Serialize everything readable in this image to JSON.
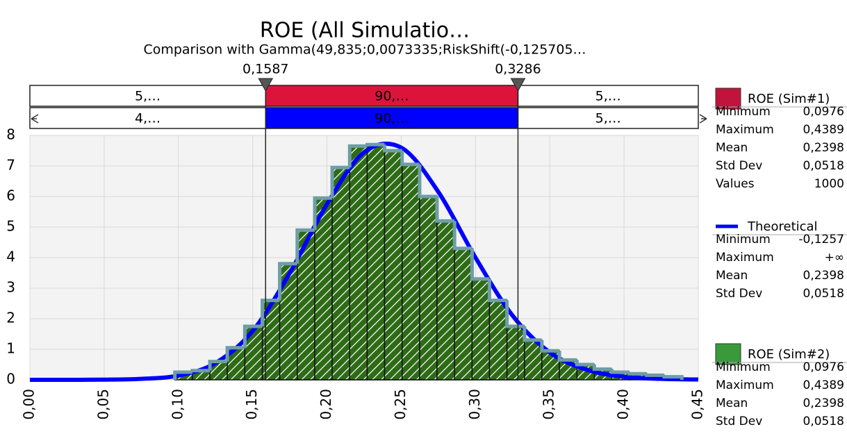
{
  "chart_data": {
    "type": "histogram",
    "title": "ROE (All Simulatio…",
    "subtitle": "Comparison with Gamma(49,835;0,0073335;RiskShift(-0,125705…",
    "xlim": [
      0,
      0.45
    ],
    "ylim": [
      0,
      8
    ],
    "xticks": [
      {
        "value": 0,
        "label": "0,00"
      },
      {
        "value": 0.05,
        "label": "0,05"
      },
      {
        "value": 0.1,
        "label": "0,10"
      },
      {
        "value": 0.15,
        "label": "0,15"
      },
      {
        "value": 0.2,
        "label": "0,20"
      },
      {
        "value": 0.25,
        "label": "0,25"
      },
      {
        "value": 0.3,
        "label": "0,30"
      },
      {
        "value": 0.35,
        "label": "0,35"
      },
      {
        "value": 0.4,
        "label": "0,40"
      },
      {
        "value": 0.45,
        "label": "0,45"
      }
    ],
    "yticks": [
      0,
      1,
      2,
      3,
      4,
      5,
      6,
      7,
      8
    ],
    "grid": true,
    "bins": [
      0.0976,
      0.1094,
      0.1212,
      0.1329,
      0.1447,
      0.1565,
      0.1682,
      0.18,
      0.1918,
      0.2035,
      0.2153,
      0.2271,
      0.2388,
      0.2506,
      0.2624,
      0.2741,
      0.2859,
      0.2977,
      0.3094,
      0.3212,
      0.333,
      0.3447,
      0.3565,
      0.3683,
      0.38,
      0.3918,
      0.4036,
      0.4153,
      0.4271,
      0.4389
    ],
    "values": [
      0.25,
      0.3,
      0.6,
      1.05,
      1.75,
      2.6,
      3.8,
      4.9,
      5.95,
      6.95,
      7.65,
      7.7,
      7.5,
      7.05,
      6.0,
      5.2,
      4.3,
      3.3,
      2.6,
      1.75,
      1.3,
      0.95,
      0.65,
      0.5,
      0.35,
      0.25,
      0.2,
      0.15,
      0.1
    ],
    "color": "#24600c",
    "outline_color": "#6e9ea6",
    "curve": {
      "color": "#0000ff",
      "x": [
        0,
        0.025,
        0.05,
        0.075,
        0.1,
        0.125,
        0.15,
        0.175,
        0.2,
        0.225,
        0.25,
        0.275,
        0.3,
        0.325,
        0.35,
        0.375,
        0.4,
        0.425,
        0.45
      ],
      "values": [
        0,
        0.001,
        0.005,
        0.03,
        0.14,
        0.55,
        1.6,
        3.5,
        5.75,
        7.45,
        7.6,
        6.15,
        4.0,
        2.1,
        0.9,
        0.33,
        0.1,
        0.03,
        0.01
      ]
    },
    "delimiters": [
      {
        "value": 0.1587,
        "label": "0,1587"
      },
      {
        "value": 0.3286,
        "label": "0,3286"
      }
    ],
    "delimiter_rows": [
      {
        "color": "#dc143c",
        "labels": [
          "5,…",
          "90,…",
          "5,…"
        ]
      },
      {
        "color": "#0000ff",
        "labels": [
          "4,…",
          "90,…",
          "5,…"
        ]
      }
    ],
    "legend": [
      {
        "name": "ROE (Sim#1)",
        "color": "#c0143c",
        "kind": "box",
        "stats": [
          [
            "Minimum",
            "0,0976"
          ],
          [
            "Maximum",
            "0,4389"
          ],
          [
            "Mean",
            "0,2398"
          ],
          [
            "Std Dev",
            "0,0518"
          ],
          [
            "Values",
            1000
          ]
        ]
      },
      {
        "name": "Theoretical",
        "color": "#0000ff",
        "kind": "line",
        "stats": [
          [
            "Minimum",
            "-0,1257"
          ],
          [
            "Maximum",
            "+∞"
          ],
          [
            "Mean",
            "0,2398"
          ],
          [
            "Std Dev",
            "0,0518"
          ]
        ]
      },
      {
        "name": "ROE (Sim#2)",
        "color": "#3a9a3a",
        "kind": "box",
        "stats": [
          [
            "Minimum",
            "0,0976"
          ],
          [
            "Maximum",
            "0,4389"
          ],
          [
            "Mean",
            "0,2398"
          ],
          [
            "Std Dev",
            "0,0518"
          ]
        ]
      }
    ]
  }
}
